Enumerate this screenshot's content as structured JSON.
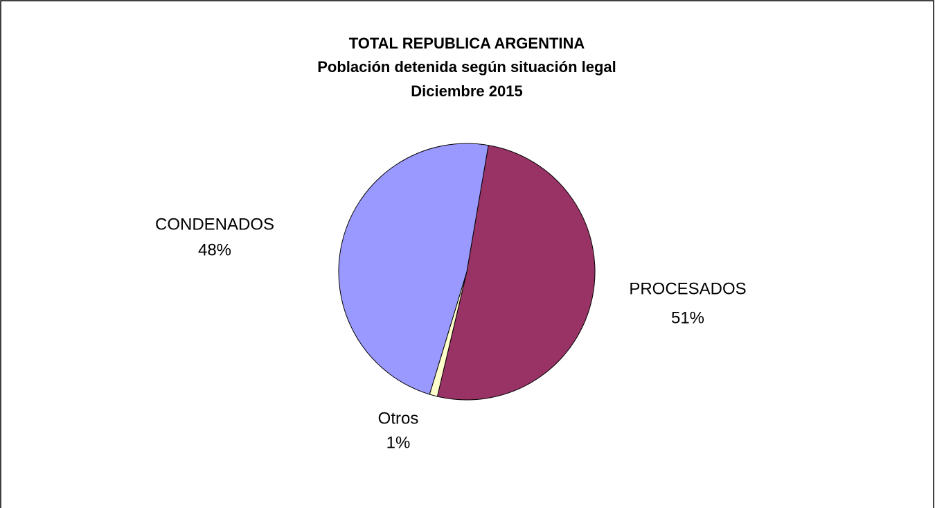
{
  "chart_data": {
    "type": "pie",
    "title": [
      "TOTAL REPUBLICA ARGENTINA",
      "Población detenida según situación legal",
      "Diciembre 2015"
    ],
    "categories": [
      "PROCESADOS",
      "Otros",
      "CONDENADOS"
    ],
    "values": [
      51,
      1,
      48
    ],
    "value_labels": [
      "51%",
      "1%",
      "48%"
    ],
    "colors": [
      "#993366",
      "#ffffcc",
      "#9999ff"
    ]
  }
}
